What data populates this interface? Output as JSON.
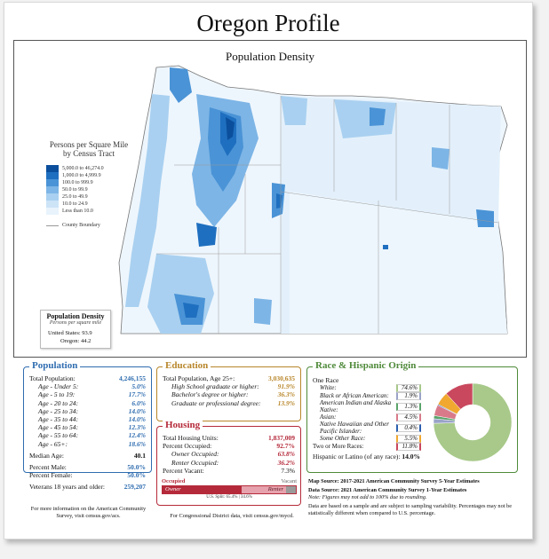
{
  "title": "Oregon Profile",
  "map": {
    "title": "Population Density",
    "legend_title": "Persons per Square Mile by Census Tract",
    "legend_items": [
      {
        "label": "5,000.0 to 46,274.0",
        "color": "#0b4f9c"
      },
      {
        "label": "1,000.0 to 4,999.9",
        "color": "#1f6fc0"
      },
      {
        "label": "100.0 to 999.9",
        "color": "#4a93d6"
      },
      {
        "label": "50.0 to 99.9",
        "color": "#7db5e6"
      },
      {
        "label": "25.0 to 49.9",
        "color": "#a9d0f0"
      },
      {
        "label": "10.0 to 24.9",
        "color": "#cde4f7"
      },
      {
        "label": "Less than 10.0",
        "color": "#e8f3fc"
      }
    ],
    "boundary_label": "County Boundary",
    "density_box": {
      "title": "Population Density",
      "subtitle": "Persons per square mile",
      "us_label": "United States:",
      "us_value": "93.9",
      "or_label": "Oregon:",
      "or_value": "44.2"
    }
  },
  "population": {
    "title": "Population",
    "total_label": "Total Population:",
    "total_value": "4,246,155",
    "ages": [
      {
        "label": "Age - Under 5:",
        "value": "5.0%"
      },
      {
        "label": "Age - 5 to 19:",
        "value": "17.7%"
      },
      {
        "label": "Age - 20 to 24:",
        "value": "6.0%"
      },
      {
        "label": "Age - 25 to 34:",
        "value": "14.0%"
      },
      {
        "label": "Age - 35 to 44:",
        "value": "14.0%"
      },
      {
        "label": "Age - 45 to 54:",
        "value": "12.3%"
      },
      {
        "label": "Age - 55 to 64:",
        "value": "12.4%"
      },
      {
        "label": "Age - 65+:",
        "value": "18.6%"
      }
    ],
    "median_label": "Median Age:",
    "median_value": "40.1",
    "male_label": "Percent Male:",
    "male_value": "50.0%",
    "female_label": "Percent Female:",
    "female_value": "50.0%",
    "veterans_label": "Veterans 18 years and older:",
    "veterans_value": "259,207"
  },
  "education": {
    "title": "Education",
    "total_label": "Total Population, Age 25+:",
    "total_value": "3,030,635",
    "rows": [
      {
        "label": "High School graduate or higher:",
        "value": "91.9%"
      },
      {
        "label": "Bachelor's degree or higher:",
        "value": "36.3%"
      },
      {
        "label": "Graduate or professional degree:",
        "value": "13.9%"
      }
    ]
  },
  "housing": {
    "title": "Housing",
    "total_label": "Total Housing Units:",
    "total_value": "1,837,009",
    "occupied_label": "Percent Occupied:",
    "occupied_value": "92.7%",
    "owner_label": "Owner Occupied:",
    "owner_value": "63.8%",
    "renter_label": "Renter Occupied:",
    "renter_value": "36.2%",
    "vacant_label": "Percent Vacant:",
    "vacant_value": "7.3%",
    "bar": {
      "occupied_label": "Occupied",
      "vacant_label": "Vacant",
      "owner_label": "Owner",
      "renter_label": "Renter",
      "owner_share": 0.591,
      "renter_share": 0.336,
      "vacant_share": 0.073,
      "split_label": "U.S. Split: 65.4% | 34.6%"
    }
  },
  "race": {
    "title": "Race & Hispanic Origin",
    "one_race_label": "One Race",
    "items": [
      {
        "label": "White:",
        "value": "74.6%",
        "color": "#a8c98a"
      },
      {
        "label": "Black or African American:",
        "value": "1.9%",
        "color": "#9aa3c8"
      },
      {
        "label": "American Indian and Alaska Native:",
        "value": "1.3%",
        "color": "#5aa46a"
      },
      {
        "label": "Asian:",
        "value": "4.5%",
        "color": "#d97a8a"
      },
      {
        "label": "Native Hawaiian and Other Pacific Islander:",
        "value": "0.4%",
        "color": "#2a5fb0"
      },
      {
        "label": "Some Other Race:",
        "value": "5.5%",
        "color": "#f0a830"
      },
      {
        "label": "Two or More Races:",
        "value": "11.8%",
        "color": "#c9485e"
      }
    ],
    "hispanic_label": "Hispanic or Latino (of any race):",
    "hispanic_value": "14.0%"
  },
  "footer": {
    "acs_note": "For more information on the American Community Survey, visit census.gov/acs.",
    "cd_note": "For Congressional District data, visit census.gov/mycd.",
    "map_source": "Map Source: 2017-2021 American Community Survey 5-Year Estimates",
    "data_source": "Data Source: 2021 American Community Survey 1-Year Estimates",
    "note1": "Note: Figures may not add to 100% due to rounding.",
    "note2": "Data are based on a sample and are subject to sampling variability. Percentages may not be statistically different when compared to U.S. percentage."
  }
}
